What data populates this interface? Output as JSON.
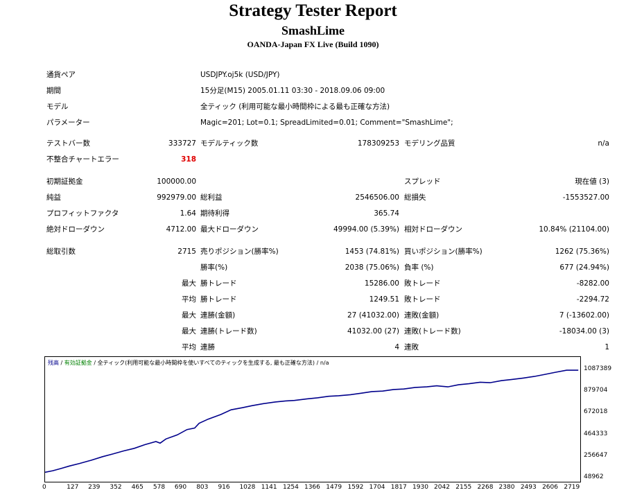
{
  "header": {
    "title": "Strategy Tester Report",
    "expert": "SmashLime",
    "broker": "OANDA-Japan FX Live (Build 1090)"
  },
  "info": {
    "symbol_label": "通貨ペア",
    "symbol_value": "USDJPY.oj5k (USD/JPY)",
    "period_label": "期間",
    "period_value": "15分足(M15) 2005.01.11 03:30 - 2018.09.06 09:00",
    "model_label": "モデル",
    "model_value": "全ティック (利用可能な最小時間枠による最も正確な方法)",
    "params_label": "パラメーター",
    "params_value": "Magic=201; Lot=0.1; SpreadLimited=0.01; Comment=\"SmashLime\";"
  },
  "stats": {
    "bars_label": "テストバー数",
    "bars_value": "333727",
    "ticks_label": "モデルティック数",
    "ticks_value": "178309253",
    "quality_label": "モデリング品質",
    "quality_value": "n/a",
    "errors_label": "不整合チャートエラー",
    "errors_value": "318",
    "deposit_label": "初期証拠金",
    "deposit_value": "100000.00",
    "spread_label": "スプレッド",
    "spread_value": "現在値 (3)",
    "net_label": "純益",
    "net_value": "992979.00",
    "gross_profit_label": "総利益",
    "gross_profit_value": "2546506.00",
    "gross_loss_label": "総損失",
    "gross_loss_value": "-1553527.00",
    "pf_label": "プロフィットファクタ",
    "pf_value": "1.64",
    "expected_label": "期待利得",
    "expected_value": "365.74",
    "abs_dd_label": "絶対ドローダウン",
    "abs_dd_value": "4712.00",
    "max_dd_label": "最大ドローダウン",
    "max_dd_value": "49994.00 (5.39%)",
    "rel_dd_label": "相対ドローダウン",
    "rel_dd_value": "10.84% (21104.00)",
    "total_label": "総取引数",
    "total_value": "2715",
    "short_label": "売りポジション(勝率%)",
    "short_value": "1453 (74.81%)",
    "long_label": "買いポジション(勝率%)",
    "long_value": "1262 (75.36%)",
    "win_pct_label": "勝率(%)",
    "win_pct_value": "2038 (75.06%)",
    "loss_pct_label": "負率 (%)",
    "loss_pct_value": "677 (24.94%)",
    "max_label": "最大",
    "avg_label": "平均",
    "max_win_label": "勝トレード",
    "max_win_value": "15286.00",
    "max_loss_label": "敗トレード",
    "max_loss_value": "-8282.00",
    "avg_win_label": "勝トレード",
    "avg_win_value": "1249.51",
    "avg_loss_label": "敗トレード",
    "avg_loss_value": "-2294.72",
    "consec_wins_label": "連勝(金額)",
    "consec_wins_value": "27 (41032.00)",
    "consec_losses_label": "連敗(金額)",
    "consec_losses_value": "7 (-13602.00)",
    "consec_profit_label": "連勝(トレード数)",
    "consec_profit_value": "41032.00 (27)",
    "consec_loss_label": "連敗(トレード数)",
    "consec_loss_value": "-18034.00 (3)",
    "avg_consec_wins_label": "連勝",
    "avg_consec_wins_value": "4",
    "avg_consec_losses_label": "連敗",
    "avg_consec_losses_value": "1"
  },
  "chart_legend": {
    "balance": "残高",
    "sep1": " / ",
    "equity": "有効証拠金",
    "sep2": " / ",
    "model": "全ティック(利用可能な最小時間枠を使いすべてのティックを生成する, 最も正確な方法)",
    "sep3": " / ",
    "quality": "n/a"
  },
  "colors": {
    "balance_line": "#00008b",
    "equity_text": "#008000",
    "error_text": "#e00000"
  },
  "chart_data": {
    "type": "line",
    "xlabel": "",
    "ylabel": "",
    "xlim": [
      0,
      2790
    ],
    "ylim": [
      48962,
      1087389
    ],
    "x_ticks": [
      "0",
      "127",
      "239",
      "352",
      "465",
      "578",
      "690",
      "803",
      "916",
      "1028",
      "1141",
      "1254",
      "1366",
      "1479",
      "1592",
      "1704",
      "1817",
      "1930",
      "2042",
      "2155",
      "2268",
      "2380",
      "2493",
      "2606",
      "2719"
    ],
    "y_ticks": [
      "1087389",
      "879704",
      "672018",
      "464333",
      "256647",
      "48962"
    ],
    "series": [
      {
        "x": [
          0,
          40,
          80,
          127,
          180,
          239,
          300,
          352,
          410,
          465,
          520,
          578,
          600,
          630,
          690,
          740,
          780,
          803,
          850,
          916,
          970,
          1028,
          1080,
          1141,
          1200,
          1254,
          1300,
          1366,
          1420,
          1479,
          1530,
          1592,
          1650,
          1704,
          1760,
          1817,
          1870,
          1930,
          1990,
          2042,
          2100,
          2155,
          2210,
          2268,
          2320,
          2380,
          2430,
          2493,
          2550,
          2606,
          2660,
          2719,
          2780
        ],
        "values": [
          100000,
          115000,
          135000,
          160000,
          185000,
          215000,
          250000,
          275000,
          305000,
          330000,
          365000,
          395000,
          380000,
          420000,
          460000,
          510000,
          525000,
          570000,
          610000,
          655000,
          700000,
          720000,
          740000,
          760000,
          775000,
          785000,
          790000,
          805000,
          815000,
          830000,
          835000,
          845000,
          860000,
          875000,
          880000,
          895000,
          900000,
          915000,
          920000,
          930000,
          920000,
          940000,
          950000,
          965000,
          960000,
          980000,
          990000,
          1005000,
          1020000,
          1040000,
          1060000,
          1080000,
          1080000
        ]
      }
    ]
  }
}
